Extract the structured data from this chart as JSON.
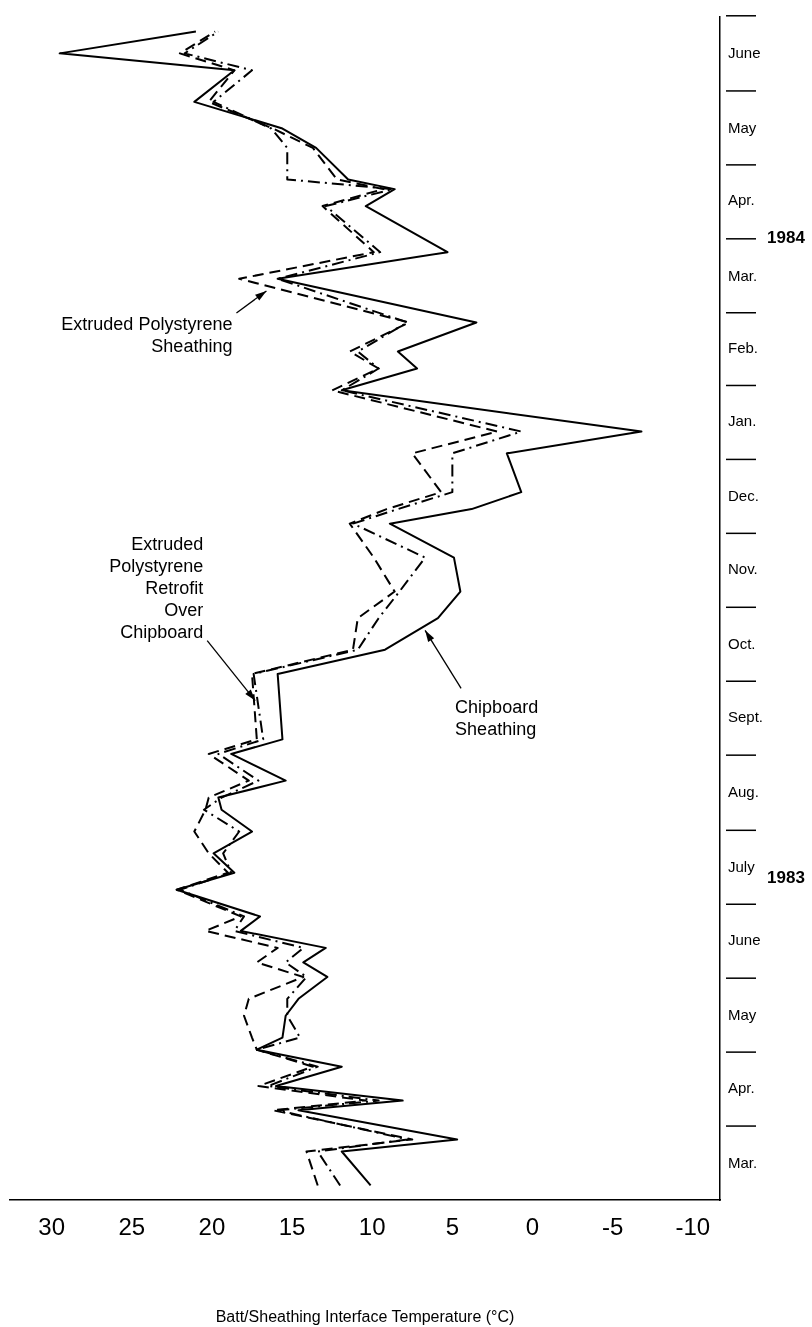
{
  "chart_data": {
    "type": "line",
    "orientation": "horizontal",
    "xlabel": "Batt/Sheathing Interface Temperature (°C)",
    "x": [
      "1983-03-07",
      "1983-03-21",
      "1983-03-26",
      "1983-04-07",
      "1983-04-11",
      "1983-04-17",
      "1983-04-25",
      "1983-05-02",
      "1983-05-07",
      "1983-05-16",
      "1983-05-23",
      "1983-06-01",
      "1983-06-07",
      "1983-06-13",
      "1983-06-20",
      "1983-06-26",
      "1983-07-07",
      "1983-07-14",
      "1983-07-22",
      "1983-07-31",
      "1983-08-09",
      "1983-08-14",
      "1983-08-21",
      "1983-09-01",
      "1983-09-07",
      "1983-10-04",
      "1983-10-14",
      "1983-10-27",
      "1983-11-07",
      "1983-11-21",
      "1983-12-05",
      "1983-12-11",
      "1983-12-18",
      "1984-01-03",
      "1984-01-12",
      "1984-01-29",
      "1984-02-07",
      "1984-02-14",
      "1984-02-26",
      "1984-03-15",
      "1984-03-26",
      "1984-04-14",
      "1984-04-21",
      "1984-04-25",
      "1984-05-08",
      "1984-05-16",
      "1984-05-27",
      "1984-06-09",
      "1984-06-16",
      "1984-06-25"
    ],
    "series": [
      {
        "color": "#000000",
        "line_style": "solid",
        "values": [
          10.1,
          11.9,
          4.7,
          14.6,
          8.1,
          16.0,
          11.9,
          17.2,
          15.6,
          15.4,
          14.6,
          12.8,
          14.3,
          12.9,
          18.2,
          17.0,
          22.2,
          18.6,
          19.9,
          17.5,
          19.4,
          19.6,
          15.4,
          18.8,
          15.6,
          15.9,
          9.2,
          5.9,
          4.5,
          4.9,
          8.9,
          3.8,
          0.7,
          1.6,
          -6.8,
          11.9,
          7.2,
          8.4,
          3.5,
          15.9,
          5.3,
          10.4,
          8.6,
          11.5,
          13.5,
          15.6,
          21.1,
          18.6,
          29.5,
          21.0
        ]
      },
      {
        "color": "#000000",
        "line_style": "dashed",
        "values": [
          13.4,
          14.1,
          7.5,
          16.2,
          10.4,
          17.1,
          13.7,
          17.2,
          17.5,
          18.0,
          17.7,
          14.3,
          17.2,
          15.9,
          20.4,
          18.2,
          22.2,
          19.0,
          20.2,
          21.1,
          20.4,
          20.2,
          17.7,
          20.2,
          17.2,
          17.5,
          11.2,
          10.9,
          8.6,
          9.9,
          11.4,
          9.1,
          5.7,
          7.5,
          2.2,
          12.5,
          9.6,
          11.4,
          7.7,
          18.3,
          9.9,
          13.1,
          9.3,
          12.2,
          13.7,
          16.2,
          20.2,
          18.6,
          22.0,
          19.8
        ]
      },
      {
        "color": "#000000",
        "line_style": "dashdot",
        "values": [
          12.0,
          13.4,
          7.8,
          15.9,
          9.6,
          16.5,
          13.4,
          17.2,
          14.5,
          15.3,
          15.3,
          14.1,
          15.4,
          14.3,
          18.6,
          18.0,
          22.0,
          18.8,
          19.3,
          18.3,
          20.5,
          19.4,
          17.1,
          19.6,
          16.8,
          17.4,
          10.9,
          9.6,
          8.3,
          6.7,
          11.2,
          8.4,
          5.0,
          5.0,
          0.7,
          11.9,
          9.6,
          10.9,
          7.8,
          15.9,
          9.5,
          12.9,
          8.7,
          15.3,
          15.3,
          16.3,
          19.9,
          17.5,
          21.7,
          19.6
        ]
      }
    ],
    "ylim": [
      "1983-03-01",
      "1984-07-01"
    ],
    "yticks": [
      {
        "value": "1983-03-16",
        "label": "Mar."
      },
      {
        "value": "1983-04-16",
        "label": "Apr."
      },
      {
        "value": "1983-05-16",
        "label": "May"
      },
      {
        "value": "1983-06-16",
        "label": "June"
      },
      {
        "value": "1983-07-16",
        "label": "July"
      },
      {
        "value": "1983-08-16",
        "label": "Aug."
      },
      {
        "value": "1983-09-16",
        "label": "Sept."
      },
      {
        "value": "1983-10-16",
        "label": "Oct."
      },
      {
        "value": "1983-11-16",
        "label": "Nov."
      },
      {
        "value": "1983-12-16",
        "label": "Dec."
      },
      {
        "value": "1984-01-16",
        "label": "Jan."
      },
      {
        "value": "1984-02-15",
        "label": "Feb."
      },
      {
        "value": "1984-03-16",
        "label": "Mar."
      },
      {
        "value": "1984-04-16",
        "label": "Apr."
      },
      {
        "value": "1984-05-16",
        "label": "May"
      },
      {
        "value": "1984-06-16",
        "label": "June"
      }
    ],
    "xlim": [
      32.6,
      -11.7
    ],
    "xticks": [
      30,
      25,
      20,
      15,
      10,
      5,
      0,
      -5,
      -10
    ],
    "annotations": [
      {
        "text": "Extruded Polystyrene\nSheathing",
        "x": 16.6,
        "y": "1984-03-10"
      },
      {
        "text": "Extruded\nPolystyrene\nRetrofit\nOver\nChipboard",
        "x": 17.3,
        "y": "1983-09-23"
      },
      {
        "text": "Chipboard\nSheathing",
        "x": 6.7,
        "y": "1983-10-22"
      },
      "1983",
      "1984"
    ]
  }
}
